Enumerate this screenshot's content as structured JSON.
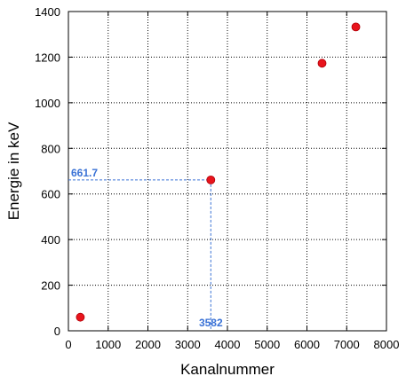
{
  "chart_data": {
    "type": "scatter",
    "title": "",
    "xlabel": "Kanalnummer",
    "ylabel": "Energie in keV",
    "xlim": [
      0,
      8000
    ],
    "ylim": [
      0,
      1400
    ],
    "xticks": [
      0,
      1000,
      2000,
      3000,
      4000,
      5000,
      6000,
      7000,
      8000
    ],
    "yticks": [
      0,
      200,
      400,
      600,
      800,
      1000,
      1200,
      1400
    ],
    "xtick_labels": [
      "0",
      "1000",
      "2000",
      "3000",
      "4000",
      "5000",
      "6000",
      "7000",
      "8000"
    ],
    "ytick_labels": [
      "0",
      "200",
      "400",
      "600",
      "800",
      "1000",
      "1200",
      "1400"
    ],
    "grid": true,
    "series": [
      {
        "color": "#e8141c",
        "points": [
          {
            "x": 300,
            "y": 59.5
          },
          {
            "x": 3582,
            "y": 661.7
          },
          {
            "x": 6380,
            "y": 1173.2
          },
          {
            "x": 7230,
            "y": 1332.5
          }
        ]
      }
    ],
    "annotations": [
      {
        "label": "661.7",
        "x": 3582,
        "y": 661.7,
        "axis": "y",
        "color": "#3a72d6"
      },
      {
        "label": "3582",
        "x": 3582,
        "y": 661.7,
        "axis": "x",
        "color": "#3a72d6"
      }
    ]
  }
}
